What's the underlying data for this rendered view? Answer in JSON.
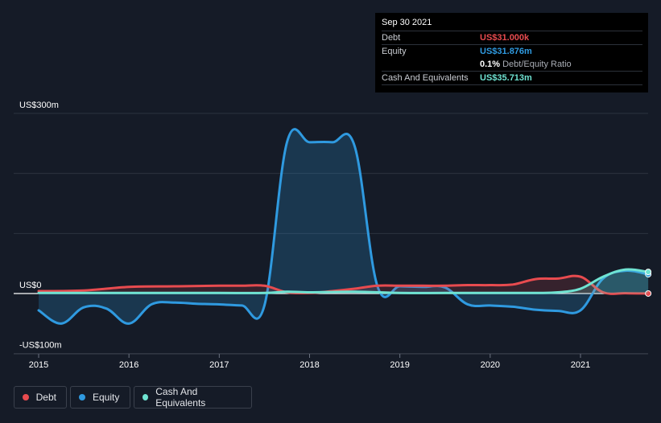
{
  "tooltip": {
    "date": "Sep 30 2021",
    "debt_label": "Debt",
    "debt_value": "US$31.000k",
    "equity_label": "Equity",
    "equity_value": "US$31.876m",
    "ratio_pct": "0.1%",
    "ratio_label": "Debt/Equity Ratio",
    "cash_label": "Cash And Equivalents",
    "cash_value": "US$35.713m"
  },
  "colors": {
    "background": "#151b27",
    "debt": "#e84b4f",
    "equity": "#2f9ae0",
    "cash": "#6fe3d2",
    "grid": "#2c333f"
  },
  "legend": {
    "debt": "Debt",
    "equity": "Equity",
    "cash": "Cash And Equivalents"
  },
  "chart_data": {
    "type": "line",
    "title": "",
    "xlabel": "",
    "ylabel": "",
    "ylim": [
      -100,
      300
    ],
    "xlim": [
      2014.9,
      2021.75
    ],
    "y_ticks": [
      {
        "value": 300,
        "label": "US$300m"
      },
      {
        "value": 0,
        "label": "US$0"
      },
      {
        "value": -100,
        "label": "-US$100m"
      }
    ],
    "x_ticks": [
      {
        "value": 2015,
        "label": "2015"
      },
      {
        "value": 2016,
        "label": "2016"
      },
      {
        "value": 2017,
        "label": "2017"
      },
      {
        "value": 2018,
        "label": "2018"
      },
      {
        "value": 2019,
        "label": "2019"
      },
      {
        "value": 2020,
        "label": "2020"
      },
      {
        "value": 2021,
        "label": "2021"
      }
    ],
    "grid": true,
    "series": [
      {
        "name": "Debt",
        "color": "#e84b4f",
        "x": [
          2015,
          2015.5,
          2016,
          2016.5,
          2017,
          2017.25,
          2017.5,
          2017.75,
          2018,
          2018.25,
          2018.5,
          2018.75,
          2019,
          2019.25,
          2019.5,
          2019.75,
          2020,
          2020.25,
          2020.5,
          2020.75,
          2021,
          2021.25,
          2021.5,
          2021.75
        ],
        "y": [
          4,
          5,
          11,
          12,
          13,
          13,
          13,
          2,
          1,
          4,
          8,
          13,
          13,
          13,
          13,
          14,
          14,
          15,
          24,
          25,
          28,
          2,
          0.5,
          0.03
        ]
      },
      {
        "name": "Equity",
        "color": "#2f9ae0",
        "x": [
          2015,
          2015.25,
          2015.5,
          2015.75,
          2016,
          2016.25,
          2016.5,
          2016.75,
          2017,
          2017.25,
          2017.5,
          2017.75,
          2018,
          2018.25,
          2018.5,
          2018.75,
          2019,
          2019.25,
          2019.5,
          2019.75,
          2020,
          2020.25,
          2020.5,
          2020.75,
          2021,
          2021.25,
          2021.5,
          2021.75
        ],
        "y": [
          -28,
          -50,
          -23,
          -25,
          -50,
          -18,
          -15,
          -17,
          -18,
          -20,
          -20,
          252,
          252,
          252,
          245,
          13,
          12,
          11,
          10,
          -18,
          -20,
          -22,
          -27,
          -29,
          -28,
          25,
          38,
          32
        ]
      },
      {
        "name": "Cash And Equivalents",
        "color": "#6fe3d2",
        "x": [
          2015,
          2015.5,
          2016,
          2016.5,
          2017,
          2017.5,
          2017.75,
          2018,
          2018.5,
          2019,
          2019.5,
          2020,
          2020.5,
          2020.75,
          2021,
          2021.25,
          2021.5,
          2021.75
        ],
        "y": [
          1,
          1,
          1,
          1,
          1,
          1,
          3,
          2,
          3,
          1,
          1,
          1,
          1,
          2,
          8,
          28,
          40,
          36
        ]
      }
    ]
  }
}
